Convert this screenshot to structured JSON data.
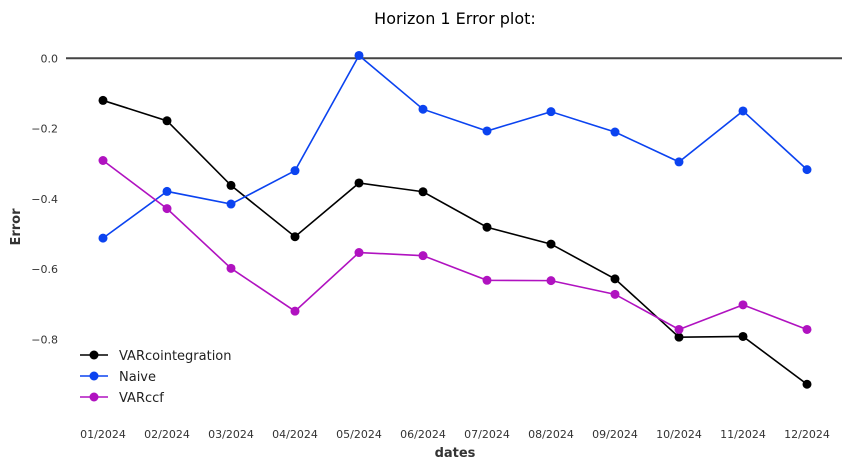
{
  "chart_data": {
    "type": "line",
    "title": "Horizon 1 Error plot:",
    "xlabel": "dates",
    "ylabel": "Error",
    "categories": [
      "01/2024",
      "02/2024",
      "03/2024",
      "04/2024",
      "05/2024",
      "06/2024",
      "07/2024",
      "08/2024",
      "09/2024",
      "10/2024",
      "11/2024",
      "12/2024"
    ],
    "y_ticks": [
      0.0,
      -0.2,
      -0.4,
      -0.6,
      -0.8
    ],
    "y_tick_labels": [
      "0.0",
      "−0.2",
      "−0.4",
      "−0.6",
      "−0.8"
    ],
    "ylim": [
      -0.97,
      0.025
    ],
    "zero_line": true,
    "grid": false,
    "legend_position": "bottom-left",
    "series": [
      {
        "name": "VARcointegration",
        "color": "#000000",
        "values": [
          -0.12,
          -0.178,
          -0.362,
          -0.508,
          -0.355,
          -0.38,
          -0.481,
          -0.529,
          -0.628,
          -0.794,
          -0.792,
          -0.928
        ]
      },
      {
        "name": "Naive",
        "color": "#0b43f0",
        "values": [
          -0.512,
          -0.379,
          -0.415,
          -0.32,
          0.008,
          -0.145,
          -0.207,
          -0.152,
          -0.21,
          -0.295,
          -0.15,
          -0.317
        ]
      },
      {
        "name": "VARccf",
        "color": "#b012c0",
        "values": [
          -0.291,
          -0.428,
          -0.598,
          -0.72,
          -0.553,
          -0.562,
          -0.632,
          -0.633,
          -0.672,
          -0.772,
          -0.702,
          -0.772
        ]
      }
    ]
  }
}
